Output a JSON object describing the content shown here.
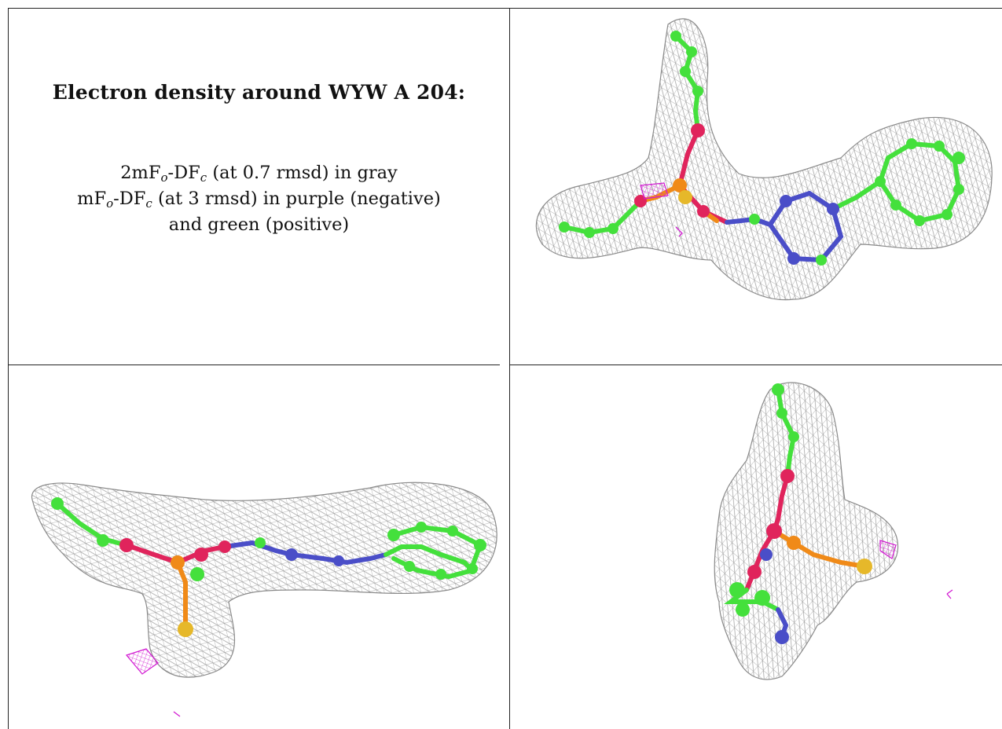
{
  "heading": "Electron density around WYW A 204:",
  "legend": {
    "line1": {
      "pre": "2mF",
      "sub1": "o",
      "mid": "-DF",
      "sub2": "c",
      "post": " (at 0.7 rmsd) in gray"
    },
    "line2": {
      "pre": "mF",
      "sub1": "o",
      "mid": "-DF",
      "sub2": "c",
      "post": " (at 3 rmsd) in purple (negative)"
    },
    "line3": "and green (positive)"
  },
  "colors": {
    "mesh_gray": "#a9a9a9",
    "carbon_green": "#44e03c",
    "oxygen_red": "#e0245c",
    "nitrogen_blue": "#4a4ec8",
    "phosphorus_orange": "#f08a18",
    "sulfur_yellow": "#e6b82a",
    "negative_density_purple": "#d21ad2"
  },
  "views": [
    {
      "name": "top-view"
    },
    {
      "name": "side-view"
    },
    {
      "name": "end-view"
    }
  ]
}
